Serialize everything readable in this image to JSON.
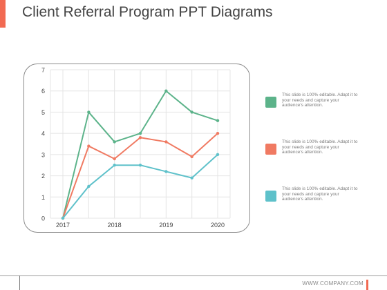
{
  "page": {
    "title": "Client Referral Program PPT Diagrams",
    "accent_color": "#f26a52",
    "footer_url": "WWW.COMPANY.COM"
  },
  "legend": [
    {
      "text": "This slide is 100% editable. Adapt it to your needs and capture your audience's attention.",
      "color": "#5cb38a"
    },
    {
      "text": "This slide is 100% editable. Adapt it to your needs and capture your audience's attention.",
      "color": "#f07a62"
    },
    {
      "text": "This slide is 100% editable. Adapt it to your needs and capture your audience's attention.",
      "color": "#5ec1ca"
    }
  ],
  "chart_data": {
    "type": "line",
    "title": "",
    "xlabel": "",
    "ylabel": "",
    "ylim": [
      0,
      7
    ],
    "xlim": [
      2017,
      2020
    ],
    "xticks": [
      "2017",
      "2018",
      "2019",
      "2020"
    ],
    "yticks": [
      0,
      1,
      2,
      3,
      4,
      5,
      6,
      7
    ],
    "grid": true,
    "legend_position": "right",
    "x": [
      2017,
      2017.5,
      2018,
      2018.5,
      2019,
      2019.5,
      2020
    ],
    "series": [
      {
        "color": "#5cb38a",
        "values": [
          0,
          5.0,
          3.6,
          4.0,
          6.0,
          5.0,
          4.6
        ]
      },
      {
        "color": "#f07a62",
        "values": [
          0,
          3.4,
          2.8,
          3.8,
          3.6,
          2.9,
          4.0
        ]
      },
      {
        "color": "#5ec1ca",
        "values": [
          0,
          1.5,
          2.5,
          2.5,
          2.2,
          1.9,
          3.0
        ]
      }
    ]
  }
}
